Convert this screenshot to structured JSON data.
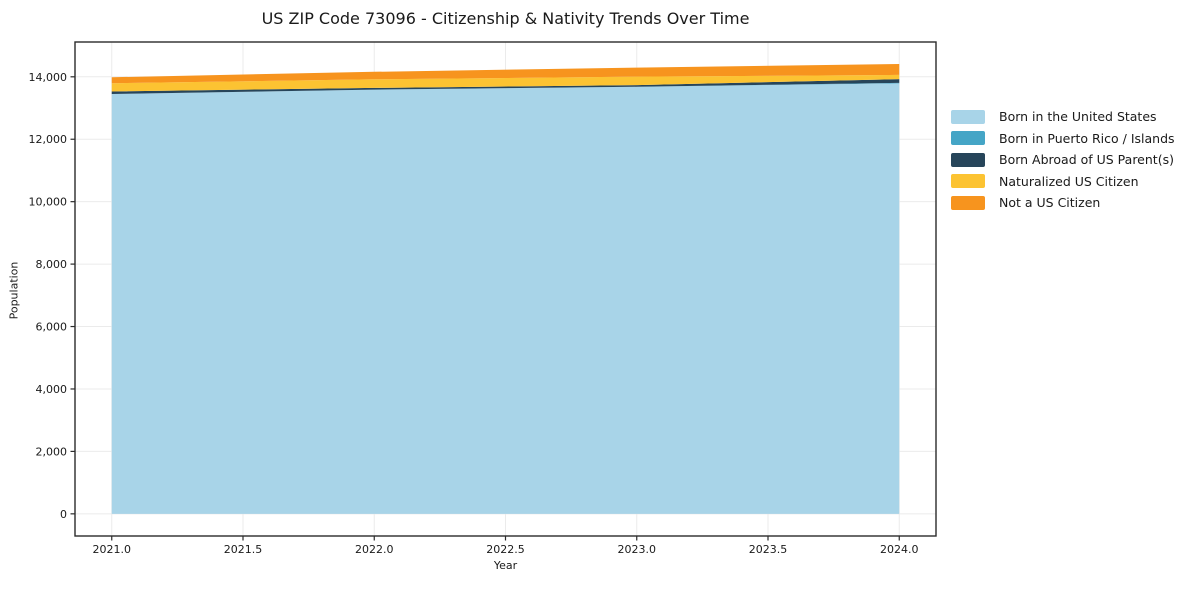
{
  "chart_data": {
    "type": "area",
    "stacked": true,
    "title": "US ZIP Code 73096 - Citizenship & Nativity Trends Over Time",
    "xlabel": "Year",
    "ylabel": "Population",
    "x": [
      2021,
      2022,
      2023,
      2024
    ],
    "series": [
      {
        "name": "Born in the United States",
        "color": "#a8d4e8",
        "values": [
          13450,
          13590,
          13680,
          13790
        ]
      },
      {
        "name": "Born in Puerto Rico / Islands",
        "color": "#45a5c6",
        "values": [
          0,
          0,
          0,
          15
        ]
      },
      {
        "name": "Born Abroad of US Parent(s)",
        "color": "#27455a",
        "values": [
          80,
          55,
          55,
          120
        ]
      },
      {
        "name": "Naturalized US Citizen",
        "color": "#fcc332",
        "values": [
          265,
          275,
          270,
          135
        ]
      },
      {
        "name": "Not a US Citizen",
        "color": "#f7941e",
        "values": [
          190,
          240,
          290,
          350
        ]
      }
    ],
    "totals": [
      13985,
      14160,
      14295,
      14410
    ],
    "xlim": [
      2020.86,
      2024.14
    ],
    "ylim": [
      -710,
      15115
    ],
    "x_ticks": {
      "values": [
        2021.0,
        2021.5,
        2022.0,
        2022.5,
        2023.0,
        2023.5,
        2024.0
      ],
      "labels": [
        "2021.0",
        "2021.5",
        "2022.0",
        "2022.5",
        "2023.0",
        "2023.5",
        "2024.0"
      ]
    },
    "y_ticks": {
      "values": [
        0,
        2000,
        4000,
        6000,
        8000,
        10000,
        12000,
        14000
      ],
      "labels": [
        "0",
        "2,000",
        "4,000",
        "6,000",
        "8,000",
        "10,000",
        "12,000",
        "14,000"
      ]
    },
    "grid": true,
    "legend_position": "right-outside",
    "colors": {
      "grid": "#ebebeb",
      "spine": "#2b2b2b",
      "tick_text": "#1a1a1a",
      "background": "#ffffff"
    }
  }
}
